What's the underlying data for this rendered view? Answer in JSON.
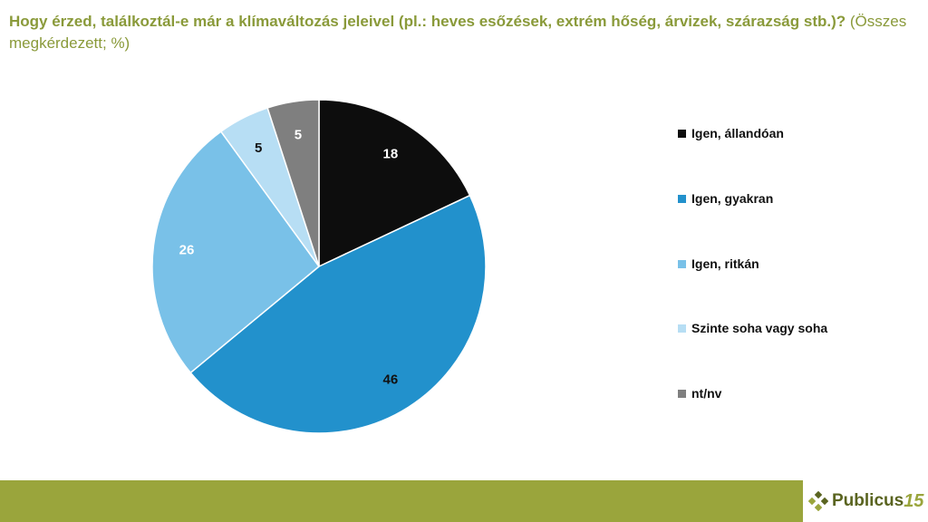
{
  "header": {
    "question": "Hogy érzed, találkoztál-e már a klímaváltozás jeleivel (pl.: heves esőzések, extrém hőség, árvizek, szárazság stb.)?",
    "base": "(Összes megkérdezett; %)"
  },
  "chart_data": {
    "type": "pie",
    "categories": [
      "Igen, állandóan",
      "Igen, gyakran",
      "Igen, ritkán",
      "Szinte soha vagy soha",
      "nt/nv"
    ],
    "values": [
      18,
      46,
      26,
      5,
      5
    ],
    "colors": [
      "#0d0d0d",
      "#2291cc",
      "#79c1e8",
      "#b7def4",
      "#7f7f7f"
    ],
    "label_colors": [
      "#ffffff",
      "#111111",
      "#ffffff",
      "#111111",
      "#ffffff"
    ],
    "start": "12 o'clock",
    "direction": "clockwise",
    "legend_position": "right"
  },
  "footer": {
    "logo_text": "Publicus",
    "logo_number": "15",
    "logo_icon": "diamond-cluster-icon"
  }
}
